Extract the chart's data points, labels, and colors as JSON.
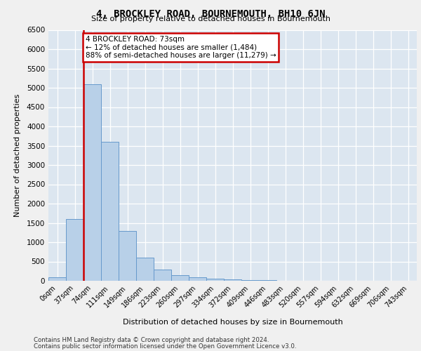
{
  "title": "4, BROCKLEY ROAD, BOURNEMOUTH, BH10 6JN",
  "subtitle": "Size of property relative to detached houses in Bournemouth",
  "xlabel": "Distribution of detached houses by size in Bournemouth",
  "ylabel": "Number of detached properties",
  "bin_labels": [
    "0sqm",
    "37sqm",
    "74sqm",
    "111sqm",
    "149sqm",
    "186sqm",
    "223sqm",
    "260sqm",
    "297sqm",
    "334sqm",
    "372sqm",
    "409sqm",
    "446sqm",
    "483sqm",
    "520sqm",
    "557sqm",
    "594sqm",
    "632sqm",
    "669sqm",
    "706sqm",
    "743sqm"
  ],
  "bar_values": [
    100,
    1600,
    5100,
    3600,
    1300,
    600,
    300,
    150,
    100,
    50,
    30,
    20,
    10,
    5,
    3,
    2,
    1,
    1,
    0,
    0,
    0
  ],
  "bar_color": "#b8d0e8",
  "bar_edge_color": "#6699cc",
  "property_line_x": 2,
  "annotation_title": "4 BROCKLEY ROAD: 73sqm",
  "annotation_line1": "← 12% of detached houses are smaller (1,484)",
  "annotation_line2": "88% of semi-detached houses are larger (11,279) →",
  "annotation_box_color": "#ffffff",
  "annotation_box_edge": "#cc0000",
  "red_line_color": "#cc0000",
  "ylim": [
    0,
    6500
  ],
  "yticks": [
    0,
    500,
    1000,
    1500,
    2000,
    2500,
    3000,
    3500,
    4000,
    4500,
    5000,
    5500,
    6000,
    6500
  ],
  "footer1": "Contains HM Land Registry data © Crown copyright and database right 2024.",
  "footer2": "Contains public sector information licensed under the Open Government Licence v3.0.",
  "plot_bg_color": "#dce6f0",
  "fig_bg_color": "#f0f0f0"
}
